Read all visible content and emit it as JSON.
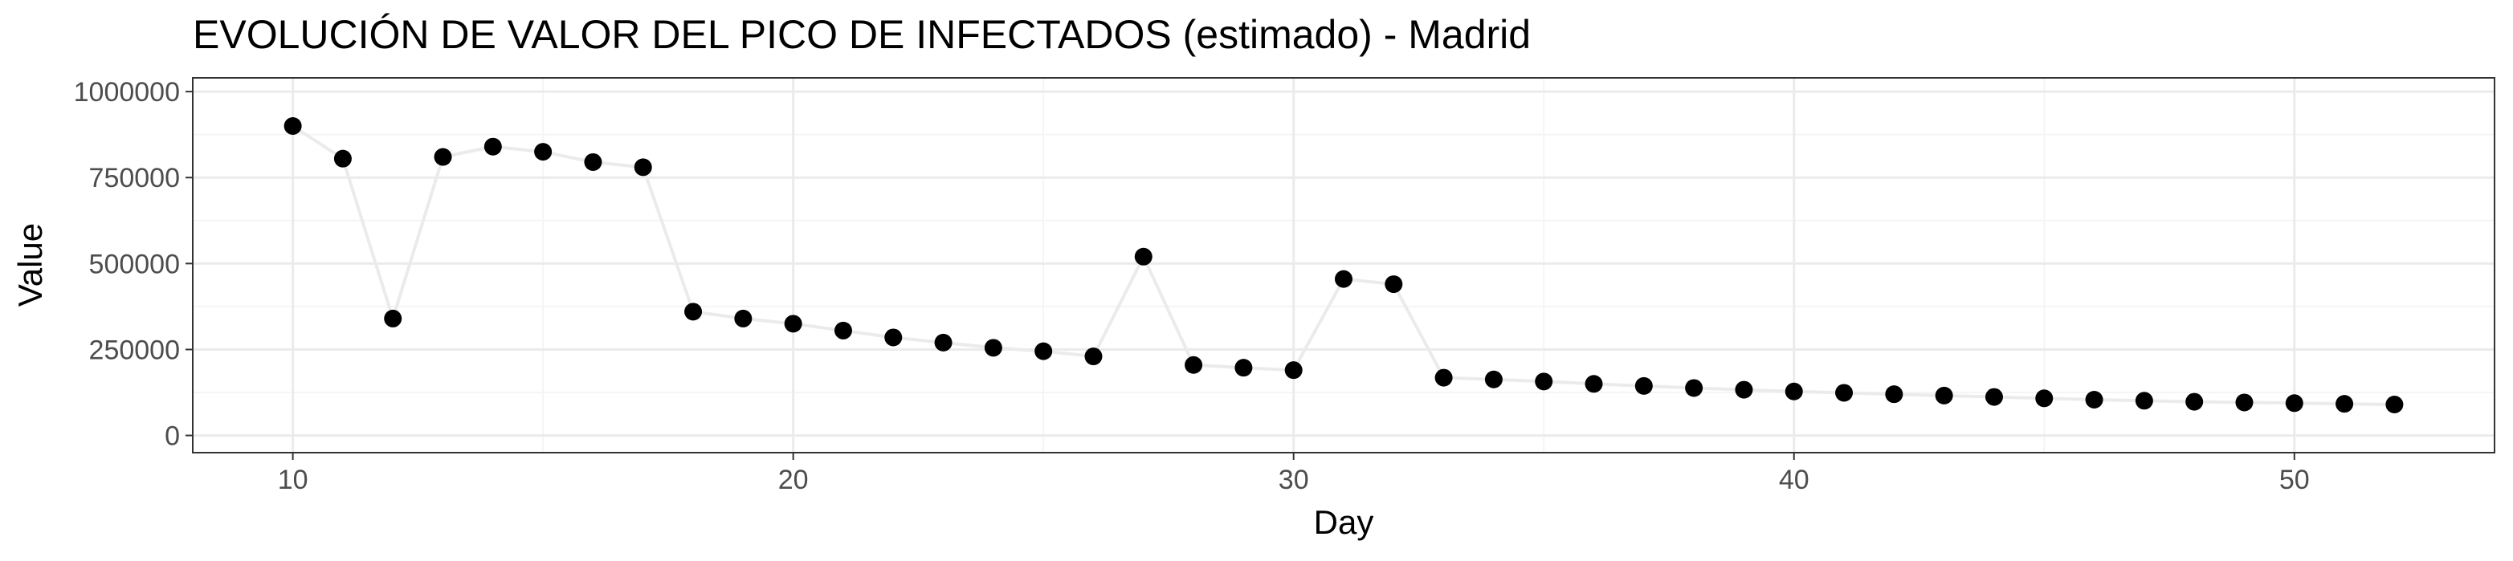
{
  "chart_data": {
    "type": "line",
    "title": "EVOLUCIÓN DE VALOR DEL PICO DE INFECTADOS (estimado) - Madrid",
    "xlabel": "Day",
    "ylabel": "Value",
    "xlim": [
      8,
      54
    ],
    "ylim": [
      -50000,
      1040000
    ],
    "x_ticks": [
      10,
      20,
      30,
      40,
      50
    ],
    "x_tick_labels": [
      "10",
      "20",
      "30",
      "40",
      "50"
    ],
    "y_ticks": [
      0,
      250000,
      500000,
      750000,
      1000000
    ],
    "y_tick_labels": [
      "0",
      "250000",
      "500000",
      "750000",
      "1000000"
    ],
    "grid": true,
    "legend": "none",
    "colors": {
      "points": "#000000",
      "line": "#ebebeb",
      "grid_major": "#ebebeb",
      "grid_minor": "#f5f5f5",
      "panel_border": "#333333"
    },
    "x": [
      10,
      11,
      12,
      13,
      14,
      15,
      16,
      17,
      18,
      19,
      20,
      21,
      22,
      23,
      24,
      25,
      26,
      27,
      28,
      29,
      30,
      31,
      32,
      33,
      34,
      35,
      36,
      37,
      38,
      39,
      40,
      41,
      42,
      43,
      44,
      45,
      46,
      47,
      48,
      49,
      50,
      51,
      52
    ],
    "y": [
      900000,
      805000,
      340000,
      810000,
      840000,
      825000,
      795000,
      780000,
      360000,
      340000,
      325000,
      305000,
      285000,
      270000,
      255000,
      245000,
      230000,
      520000,
      205000,
      197000,
      190000,
      455000,
      440000,
      168000,
      163000,
      157000,
      150000,
      144000,
      138000,
      133000,
      128000,
      124000,
      120000,
      116000,
      112000,
      108000,
      104000,
      101000,
      98000,
      96000,
      94000,
      92000,
      90000
    ]
  }
}
